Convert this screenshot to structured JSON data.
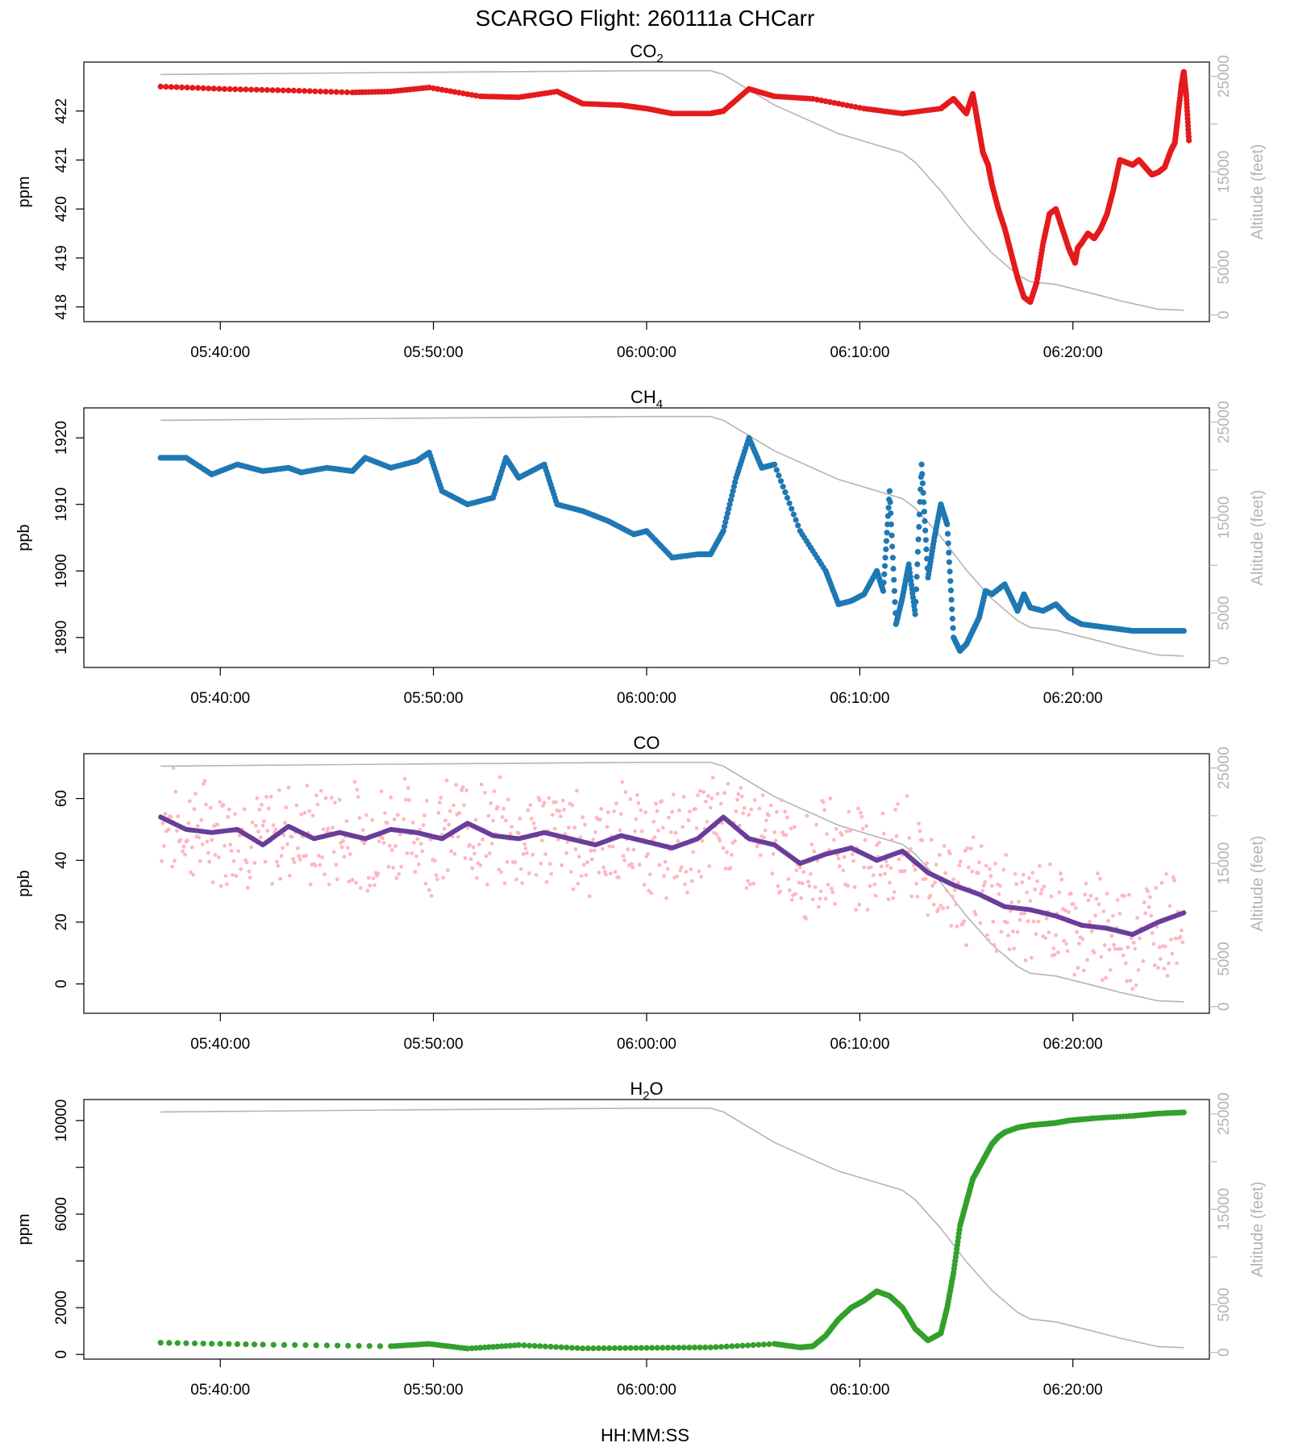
{
  "figure": {
    "title": "SCARGO Flight: 260111a  CHCarr",
    "xlabel": "HH:MM:SS"
  },
  "colors": {
    "altitude": "#b4b4b4",
    "frame": "#000000"
  },
  "chart_data": [
    {
      "id": "co2",
      "type": "scatter",
      "title_main": "CO",
      "title_sub": "2",
      "title_tail": "",
      "ylabel": "ppm",
      "ylim": [
        417.7,
        423.0
      ],
      "yticks": [
        418,
        419,
        420,
        421,
        422
      ],
      "ytick_labels": [
        "418",
        "419",
        "420",
        "421",
        "422"
      ],
      "color": "#e41a1c",
      "series": [
        {
          "name": "CO2",
          "x": [
            5.62,
            5.67,
            5.72,
            5.77,
            5.8,
            5.83,
            5.87,
            5.9,
            5.93,
            5.95,
            5.98,
            6.0,
            6.02,
            6.05,
            6.06,
            6.08,
            6.1,
            6.13,
            6.17,
            6.2,
            6.23,
            6.24,
            6.25,
            6.255,
            6.258,
            6.26,
            6.263,
            6.267,
            6.27,
            6.275,
            6.28,
            6.285,
            6.29,
            6.295,
            6.3,
            6.305,
            6.31,
            6.315,
            6.32,
            6.325,
            6.33,
            6.335,
            6.337,
            6.34,
            6.345,
            6.35,
            6.355,
            6.36,
            6.365,
            6.37,
            6.375,
            6.38,
            6.385,
            6.39,
            6.395,
            6.4,
            6.405,
            6.41,
            6.413,
            6.415,
            6.418,
            6.42,
            6.422,
            6.424
          ],
          "y": [
            422.5,
            422.45,
            422.42,
            422.38,
            422.4,
            422.48,
            422.3,
            422.28,
            422.4,
            422.15,
            422.12,
            422.05,
            421.95,
            421.95,
            422.0,
            422.45,
            422.3,
            422.25,
            422.05,
            421.95,
            422.05,
            422.25,
            421.95,
            422.35,
            421.9,
            421.6,
            421.15,
            420.9,
            420.5,
            420.0,
            419.6,
            419.1,
            418.6,
            418.2,
            418.1,
            418.5,
            419.3,
            419.9,
            420.0,
            419.6,
            419.2,
            418.9,
            419.2,
            419.3,
            419.5,
            419.4,
            419.6,
            419.9,
            420.4,
            421.0,
            420.95,
            420.9,
            421.0,
            420.85,
            420.7,
            420.75,
            420.85,
            421.2,
            421.35,
            421.8,
            422.5,
            422.8,
            422.3,
            421.4
          ]
        }
      ]
    },
    {
      "id": "ch4",
      "type": "scatter",
      "title_main": "CH",
      "title_sub": "4",
      "title_tail": "",
      "ylabel": "ppb",
      "ylim": [
        1885.5,
        1924.5
      ],
      "yticks": [
        1890,
        1900,
        1910,
        1920
      ],
      "ytick_labels": [
        "1890",
        "1900",
        "1910",
        "1920"
      ],
      "color": "#1f78b4",
      "series": [
        {
          "name": "CH4",
          "x": [
            5.62,
            5.64,
            5.66,
            5.68,
            5.7,
            5.72,
            5.73,
            5.75,
            5.77,
            5.78,
            5.8,
            5.82,
            5.83,
            5.84,
            5.86,
            5.88,
            5.89,
            5.9,
            5.92,
            5.93,
            5.95,
            5.97,
            5.99,
            6.0,
            6.02,
            6.04,
            6.05,
            6.06,
            6.07,
            6.08,
            6.09,
            6.1,
            6.12,
            6.14,
            6.15,
            6.16,
            6.17,
            6.18,
            6.185,
            6.19,
            6.195,
            6.2,
            6.205,
            6.21,
            6.215,
            6.22,
            6.225,
            6.23,
            6.235,
            6.24,
            6.245,
            6.25,
            6.255,
            6.26,
            6.265,
            6.27,
            6.28,
            6.29,
            6.295,
            6.3,
            6.31,
            6.32,
            6.33,
            6.34,
            6.36,
            6.38,
            6.4,
            6.42
          ],
          "y": [
            1917,
            1917,
            1914.5,
            1916,
            1915,
            1915.5,
            1914.8,
            1915.5,
            1915,
            1917,
            1915.5,
            1916.5,
            1917.8,
            1912,
            1910,
            1911,
            1917,
            1914,
            1916,
            1910,
            1909,
            1907.5,
            1905.5,
            1906,
            1902,
            1902.5,
            1902.5,
            1906,
            1914,
            1920,
            1915.5,
            1916,
            1906,
            1900,
            1895,
            1895.5,
            1896.5,
            1900,
            1897,
            1912,
            1892,
            1896,
            1901,
            1893.5,
            1916,
            1899,
            1905,
            1910,
            1907,
            1890,
            1888,
            1889,
            1891,
            1893,
            1897,
            1896.5,
            1898,
            1894,
            1896.5,
            1894.5,
            1894,
            1895,
            1893,
            1892,
            1891.5,
            1891,
            1891,
            1891
          ]
        }
      ]
    },
    {
      "id": "co",
      "type": "scatter",
      "title_main": "CO",
      "title_sub": "",
      "title_tail": "",
      "ylabel": "ppb",
      "ylim": [
        -9.5,
        74.5
      ],
      "yticks": [
        0,
        20,
        40,
        60
      ],
      "ytick_labels": [
        "0",
        "20",
        "40",
        "60"
      ],
      "color": "#ffb6c1",
      "smooth_color": "#6a3d9a",
      "series": [
        {
          "name": "CO smoothed",
          "x": [
            5.62,
            5.64,
            5.66,
            5.68,
            5.7,
            5.72,
            5.74,
            5.76,
            5.78,
            5.8,
            5.82,
            5.84,
            5.86,
            5.88,
            5.9,
            5.92,
            5.94,
            5.96,
            5.98,
            6.0,
            6.02,
            6.04,
            6.06,
            6.08,
            6.1,
            6.12,
            6.14,
            6.16,
            6.18,
            6.2,
            6.22,
            6.24,
            6.26,
            6.28,
            6.3,
            6.32,
            6.34,
            6.36,
            6.38,
            6.4,
            6.42
          ],
          "y": [
            54,
            50,
            49,
            50,
            45,
            51,
            47,
            49,
            47,
            50,
            49,
            47,
            52,
            48,
            47,
            49,
            47,
            45,
            48,
            46,
            44,
            47,
            54,
            47,
            45,
            39,
            42,
            44,
            40,
            43,
            36,
            32,
            29,
            25,
            24,
            22,
            19,
            18,
            16,
            20,
            23
          ]
        }
      ]
    },
    {
      "id": "h2o",
      "type": "scatter",
      "title_main": "H",
      "title_sub": "2",
      "title_tail": "O",
      "ylabel": "ppm",
      "ylim": [
        -200,
        10900
      ],
      "yticks": [
        0,
        2000,
        6000,
        10000
      ],
      "minor_yticks": [
        4000,
        8000
      ],
      "ytick_labels": [
        "0",
        "2000",
        "6000",
        "10000"
      ],
      "color": "#33a02c",
      "series": [
        {
          "name": "H2O",
          "x": [
            5.62,
            5.7,
            5.8,
            5.83,
            5.86,
            5.9,
            5.95,
            6.0,
            6.05,
            6.1,
            6.12,
            6.13,
            6.14,
            6.15,
            6.16,
            6.17,
            6.18,
            6.19,
            6.2,
            6.21,
            6.22,
            6.23,
            6.235,
            6.24,
            6.245,
            6.25,
            6.255,
            6.26,
            6.265,
            6.27,
            6.275,
            6.28,
            6.29,
            6.3,
            6.31,
            6.32,
            6.33,
            6.35,
            6.38,
            6.4,
            6.42
          ],
          "y": [
            500,
            420,
            350,
            450,
            250,
            400,
            260,
            280,
            300,
            450,
            300,
            350,
            800,
            1500,
            2000,
            2300,
            2700,
            2500,
            2000,
            1100,
            600,
            900,
            2000,
            3500,
            5500,
            6500,
            7500,
            8000,
            8500,
            9000,
            9300,
            9500,
            9700,
            9800,
            9850,
            9900,
            10000,
            10100,
            10200,
            10300,
            10350
          ]
        }
      ]
    }
  ],
  "altitude": {
    "ylabel": "Altitude (feet)",
    "ylim": [
      0,
      26000
    ],
    "yticks": [
      0,
      5000,
      15000,
      25000
    ],
    "ytick_labels": [
      "0",
      "5000",
      "15000",
      "25000"
    ],
    "minor_yticks": [
      10000,
      20000
    ],
    "x": [
      5.62,
      5.8,
      6.0,
      6.05,
      6.06,
      6.1,
      6.15,
      6.2,
      6.21,
      6.23,
      6.25,
      6.27,
      6.29,
      6.3,
      6.32,
      6.35,
      6.37,
      6.4,
      6.42
    ],
    "y": [
      25200,
      25400,
      25600,
      25600,
      25200,
      22000,
      19000,
      17000,
      16000,
      13000,
      9500,
      6500,
      4200,
      3500,
      3200,
      2200,
      1500,
      600,
      500
    ]
  },
  "xaxis": {
    "xlim": [
      5.56,
      6.44
    ],
    "ticks": [
      5.6667,
      5.8333,
      6.0,
      6.1667,
      6.3333
    ],
    "tick_labels": [
      "05:40:00",
      "05:50:00",
      "06:00:00",
      "06:10:00",
      "06:20:00"
    ]
  }
}
